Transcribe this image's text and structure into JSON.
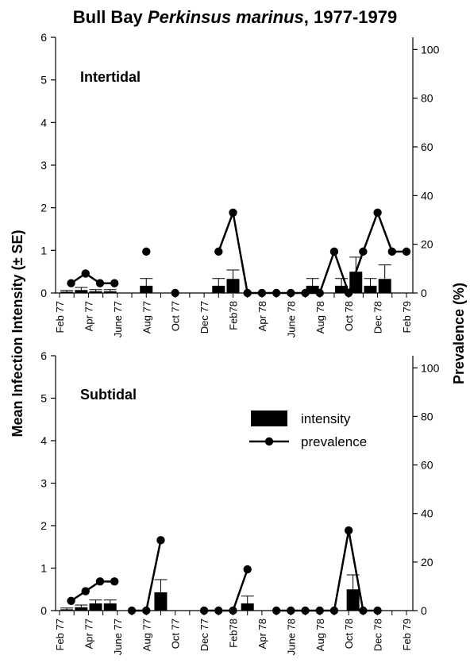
{
  "title_main": "Bull Bay ",
  "title_italic": "Perkinsus marinus",
  "title_tail": ", 1977-1979",
  "y_left_label": "Mean Infection Intensity (± SE)",
  "y_right_label": "Prevalence (%)",
  "legend": {
    "intensity": "intensity",
    "prevalence": "prevalence"
  },
  "chart_data": [
    {
      "type": "bar",
      "panel": "Intertidal",
      "x_tick_labels": [
        "Feb 77",
        "Apr 77",
        "June 77",
        "Aug 77",
        "Oct 77",
        "Dec 77",
        "Feb78",
        "Apr 78",
        "June 78",
        "Aug 78",
        "Oct 78",
        "Dec 78",
        "Feb 79"
      ],
      "x_range": [
        1,
        25
      ],
      "y_left_range": [
        0,
        6
      ],
      "y_left_ticks": [
        0,
        1,
        2,
        3,
        4,
        5,
        6
      ],
      "y_right_range": [
        0,
        105
      ],
      "y_right_ticks": [
        0,
        20,
        40,
        60,
        80,
        100
      ],
      "series": [
        {
          "name": "intensity",
          "axis": "left",
          "points": [
            {
              "x": 1.5,
              "y": 0.03,
              "se": 0.03
            },
            {
              "x": 2.5,
              "y": 0.07,
              "se": 0.06
            },
            {
              "x": 3.5,
              "y": 0.04,
              "se": 0.04
            },
            {
              "x": 4.5,
              "y": 0.04,
              "se": 0.04
            },
            {
              "x": 7.0,
              "y": 0.17,
              "se": 0.17
            },
            {
              "x": 12.0,
              "y": 0.17,
              "se": 0.17
            },
            {
              "x": 13.0,
              "y": 0.33,
              "se": 0.21
            },
            {
              "x": 18.5,
              "y": 0.17,
              "se": 0.17
            },
            {
              "x": 20.5,
              "y": 0.17,
              "se": 0.17
            },
            {
              "x": 21.5,
              "y": 0.5,
              "se": 0.34
            },
            {
              "x": 22.5,
              "y": 0.17,
              "se": 0.17
            },
            {
              "x": 23.5,
              "y": 0.33,
              "se": 0.33
            }
          ]
        },
        {
          "name": "prevalence",
          "axis": "right",
          "points": [
            {
              "x": 1.8,
              "y": 4
            },
            {
              "x": 2.8,
              "y": 8
            },
            {
              "x": 3.8,
              "y": 4
            },
            {
              "x": 4.8,
              "y": 4
            },
            {
              "x": 7.0,
              "y": 17,
              "connected": false
            },
            {
              "x": 9.0,
              "y": 0,
              "connected": false
            },
            {
              "x": 12.0,
              "y": 17
            },
            {
              "x": 13.0,
              "y": 33
            },
            {
              "x": 14.0,
              "y": 0
            },
            {
              "x": 15.0,
              "y": 0
            },
            {
              "x": 16.0,
              "y": 0
            },
            {
              "x": 17.0,
              "y": 0
            },
            {
              "x": 18.0,
              "y": 0
            },
            {
              "x": 19.0,
              "y": 0
            },
            {
              "x": 20.0,
              "y": 17
            },
            {
              "x": 21.0,
              "y": 0
            },
            {
              "x": 22.0,
              "y": 17
            },
            {
              "x": 23.0,
              "y": 33
            },
            {
              "x": 24.0,
              "y": 17
            },
            {
              "x": 25.0,
              "y": 17
            }
          ]
        }
      ]
    },
    {
      "type": "bar",
      "panel": "Subtidal",
      "x_tick_labels": [
        "Feb 77",
        "Apr 77",
        "June 77",
        "Aug 77",
        "Oct 77",
        "Dec 77",
        "Feb78",
        "Apr 78",
        "June 78",
        "Aug 78",
        "Oct 78",
        "Dec 78",
        "Feb 79"
      ],
      "x_range": [
        1,
        25
      ],
      "y_left_range": [
        0,
        6
      ],
      "y_left_ticks": [
        0,
        1,
        2,
        3,
        4,
        5,
        6
      ],
      "y_right_range": [
        0,
        105
      ],
      "y_right_ticks": [
        0,
        20,
        40,
        60,
        80,
        100
      ],
      "series": [
        {
          "name": "intensity",
          "axis": "left",
          "points": [
            {
              "x": 1.5,
              "y": 0.03,
              "se": 0.03
            },
            {
              "x": 2.5,
              "y": 0.08,
              "se": 0.05
            },
            {
              "x": 3.5,
              "y": 0.17,
              "se": 0.08
            },
            {
              "x": 4.5,
              "y": 0.17,
              "se": 0.08
            },
            {
              "x": 8.0,
              "y": 0.43,
              "se": 0.3
            },
            {
              "x": 14.0,
              "y": 0.17,
              "se": 0.17
            },
            {
              "x": 21.3,
              "y": 0.5,
              "se": 0.34
            }
          ]
        },
        {
          "name": "prevalence",
          "axis": "right",
          "points": [
            {
              "x": 1.8,
              "y": 4
            },
            {
              "x": 2.8,
              "y": 8
            },
            {
              "x": 3.8,
              "y": 12
            },
            {
              "x": 4.8,
              "y": 12
            },
            {
              "x": 6.0,
              "y": 0
            },
            {
              "x": 7.0,
              "y": 0
            },
            {
              "x": 8.0,
              "y": 29
            },
            {
              "x": 11.0,
              "y": 0
            },
            {
              "x": 12.0,
              "y": 0
            },
            {
              "x": 13.0,
              "y": 0
            },
            {
              "x": 14.0,
              "y": 17
            },
            {
              "x": 16.0,
              "y": 0
            },
            {
              "x": 17.0,
              "y": 0
            },
            {
              "x": 18.0,
              "y": 0
            },
            {
              "x": 19.0,
              "y": 0
            },
            {
              "x": 20.0,
              "y": 0
            },
            {
              "x": 21.0,
              "y": 33
            },
            {
              "x": 22.0,
              "y": 0
            },
            {
              "x": 23.0,
              "y": 0
            }
          ]
        }
      ]
    }
  ]
}
